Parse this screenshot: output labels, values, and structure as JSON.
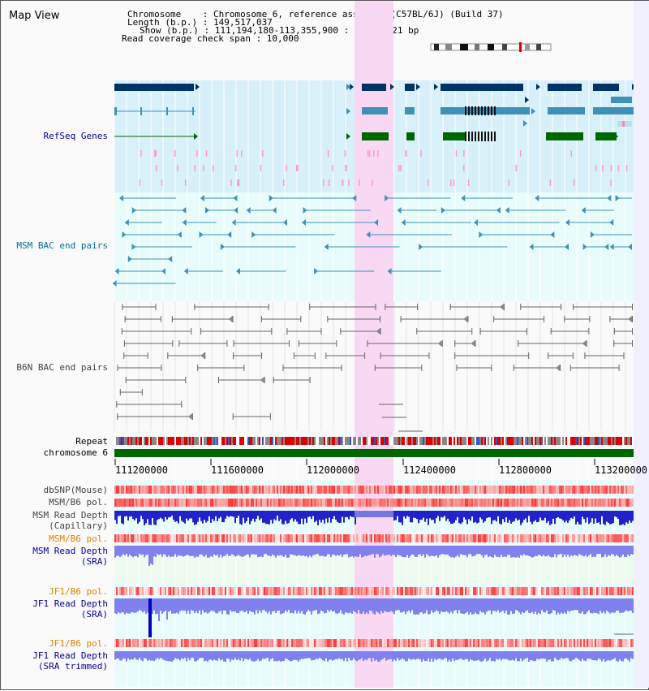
{
  "title": "Map View",
  "info": {
    "chromosome": "Chromosome    : Chromosome 6, reference assembly (C57BL/6J) (Build 37)",
    "length": "Length (b.p.) : 149,517,037",
    "show": "Show (b.p.) : 111,194,180-113,355,900 : 2,161,721 bp",
    "coverage": "Read coverage check span : 10,000"
  },
  "tracks": {
    "refseq": "RefSeq Genes",
    "msm_bac": "MSM BAC end pairs",
    "b6n_bac": "B6N BAC end pairs",
    "repeat": "Repeat",
    "chromosome": "chromosome 6",
    "dbsnp": "dbSNP(Mouse)",
    "msm_b6_pol": "MSM/B6 pol.",
    "msm_read_cap_1": "MSM Read Depth",
    "msm_read_cap_2": "(Capillary)",
    "msm_b6_pol_2": "MSM/B6 pol.",
    "msm_sra_1": "MSM Read Depth",
    "msm_sra_2": "(SRA)",
    "jf1_pol": "JF1/B6 pol.",
    "jf1_sra_1": "JF1 Read Depth",
    "jf1_sra_2": "(SRA)",
    "jf1_pol_2": "JF1/B6 pol.",
    "jf1_trim_1": "JF1 Read Depth",
    "jf1_trim_2": "(SRA trimmed)"
  },
  "axis": {
    "ticks": [
      "111200000",
      "111600000",
      "112000000",
      "112400000",
      "112800000",
      "113200000"
    ]
  },
  "colors": {
    "refseq_bg": "#d8f0fa",
    "msm_bg": "#e8fcfc",
    "sra_bg": "#eefbf0",
    "highlight": "#f9d8f4",
    "navy": "#003366",
    "teal": "#4090b8",
    "green": "#006600",
    "label_navy": "#000099",
    "label_teal": "#006f8f",
    "label_orange": "#e08000",
    "label_gray": "#444444"
  }
}
